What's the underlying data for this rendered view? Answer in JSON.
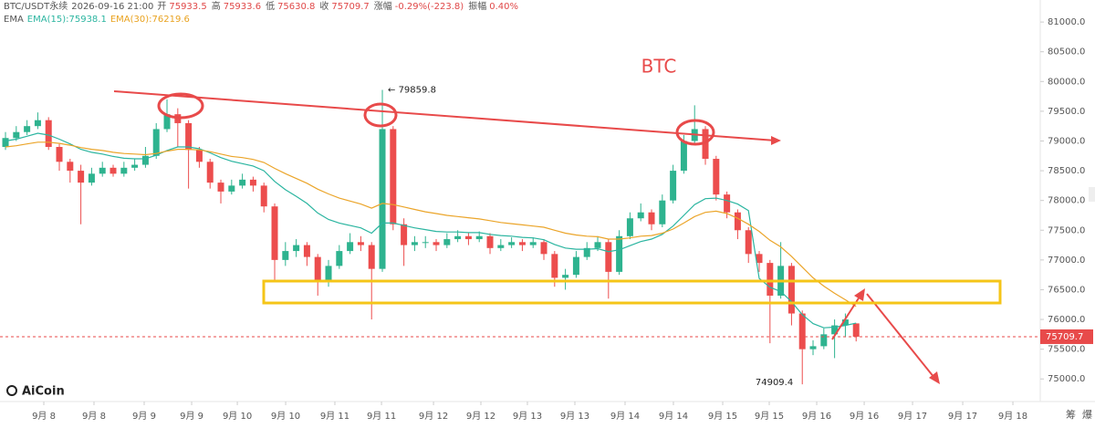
{
  "chart_data": {
    "type": "candlestick",
    "title": "BTC",
    "header": {
      "symbol": "BTC/USDT永续",
      "time": "2026-09-16 21:00",
      "fields": [
        {
          "name": "开",
          "value": "75933.5"
        },
        {
          "name": "高",
          "value": "75933.6"
        },
        {
          "name": "低",
          "value": "75630.8"
        },
        {
          "name": "收",
          "value": "75709.7"
        },
        {
          "name": "涨幅",
          "value": "-0.29%(-223.8)"
        },
        {
          "name": "振幅",
          "value": "0.40%"
        }
      ]
    },
    "indicator": "EMA",
    "watermark": "AiCoin",
    "corner_buttons": [
      "筹",
      "爆"
    ],
    "up_color": "#2eb38f",
    "down_color": "#ec4d4d",
    "open": [
      78900,
      79050,
      79150,
      79250,
      79350,
      78900,
      78650,
      78500,
      78300,
      78450,
      78550,
      78450,
      78550,
      78600,
      78750,
      79200,
      79450,
      79300,
      78850,
      78650,
      78300,
      78150,
      78250,
      78350,
      78250,
      77900,
      77000,
      77150,
      77250,
      77050,
      76650,
      76900,
      77150,
      77300,
      77250,
      76850,
      79200,
      77600,
      77250,
      77300,
      77300,
      77250,
      77350,
      77400,
      77350,
      77400,
      77200,
      77250,
      77300,
      77250,
      77300,
      77100,
      76700,
      76750,
      77050,
      77200,
      77300,
      76800,
      77400,
      77700,
      77800,
      77600,
      78000,
      78500,
      79000,
      79200,
      78700,
      78100,
      77800,
      77500,
      77100,
      76950,
      76400,
      76900,
      76100,
      75500,
      75550,
      75750,
      75900,
      75933.5
    ],
    "high": [
      79150,
      79250,
      79350,
      79480,
      79400,
      78950,
      78700,
      78600,
      78550,
      78650,
      78600,
      78650,
      78700,
      78900,
      79300,
      79700,
      79550,
      79350,
      78900,
      78700,
      78350,
      78350,
      78450,
      78400,
      78300,
      77950,
      77300,
      77350,
      77300,
      77100,
      77000,
      77250,
      77450,
      77400,
      77300,
      79859.8,
      79250,
      77700,
      77400,
      77400,
      77350,
      77450,
      77500,
      77450,
      77480,
      77450,
      77350,
      77380,
      77350,
      77380,
      77350,
      77150,
      76850,
      77150,
      77300,
      77400,
      77350,
      77500,
      77800,
      77950,
      77850,
      78100,
      78600,
      79100,
      79600,
      79250,
      78750,
      78150,
      77850,
      77550,
      77150,
      77000,
      77300,
      76950,
      76150,
      75650,
      75850,
      76000,
      76100,
      75933.6
    ],
    "low": [
      78850,
      79000,
      79100,
      79200,
      78850,
      78500,
      78300,
      77600,
      78250,
      78400,
      78400,
      78400,
      78500,
      78550,
      78700,
      79150,
      78900,
      78200,
      78550,
      78200,
      77950,
      78100,
      78200,
      78150,
      77800,
      76650,
      76900,
      77050,
      76900,
      76400,
      76550,
      76850,
      77100,
      77150,
      76000,
      76800,
      77500,
      76900,
      77150,
      77200,
      77150,
      77200,
      77300,
      77250,
      77300,
      77100,
      77150,
      77200,
      77150,
      77200,
      77000,
      76550,
      76500,
      76700,
      77000,
      77150,
      76350,
      76750,
      77350,
      77650,
      77500,
      77550,
      77950,
      78450,
      78950,
      78600,
      78000,
      77700,
      77350,
      76950,
      76800,
      75600,
      76350,
      75900,
      74909.4,
      75400,
      75500,
      75350,
      75700,
      75630.8
    ],
    "close": [
      79050,
      79150,
      79250,
      79350,
      78900,
      78650,
      78500,
      78300,
      78450,
      78550,
      78450,
      78550,
      78600,
      78750,
      79200,
      79450,
      79300,
      78850,
      78650,
      78300,
      78150,
      78250,
      78350,
      78250,
      77900,
      77000,
      77150,
      77250,
      77050,
      76650,
      76900,
      77150,
      77300,
      77250,
      76850,
      79200,
      77600,
      77250,
      77300,
      77300,
      77250,
      77350,
      77400,
      77350,
      77400,
      77200,
      77250,
      77300,
      77250,
      77300,
      77100,
      76700,
      76750,
      77050,
      77200,
      77300,
      76800,
      77400,
      77700,
      77800,
      77600,
      78000,
      78500,
      79000,
      79200,
      78700,
      78100,
      77800,
      77500,
      77100,
      76950,
      76400,
      76900,
      76100,
      75500,
      75550,
      75750,
      75900,
      76000,
      75709.7
    ],
    "series": [
      {
        "name": "EMA(15):75938.1",
        "color": "#2bb5a0",
        "values": [
          79000,
          79030,
          79080,
          79130,
          79100,
          79030,
          78950,
          78860,
          78810,
          78780,
          78740,
          78710,
          78700,
          78700,
          78760,
          78840,
          78900,
          78900,
          78870,
          78800,
          78720,
          78660,
          78620,
          78580,
          78500,
          78320,
          78180,
          78070,
          77950,
          77790,
          77680,
          77620,
          77580,
          77540,
          77450,
          77620,
          77620,
          77580,
          77540,
          77510,
          77480,
          77470,
          77470,
          77460,
          77460,
          77430,
          77410,
          77400,
          77380,
          77370,
          77340,
          77260,
          77200,
          77180,
          77180,
          77190,
          77140,
          77170,
          77240,
          77310,
          77350,
          77430,
          77570,
          77750,
          77930,
          78030,
          78040,
          78000,
          77940,
          77830,
          76690,
          76540,
          76470,
          76300,
          76080,
          75930,
          75860,
          75870,
          75900,
          75938.1
        ]
      },
      {
        "name": "EMA(30):76219.6",
        "color": "#eba52a",
        "values": [
          78900,
          78920,
          78950,
          78980,
          78980,
          78960,
          78930,
          78890,
          78860,
          78840,
          78810,
          78790,
          78780,
          78770,
          78790,
          78830,
          78860,
          78860,
          78850,
          78820,
          78780,
          78740,
          78720,
          78690,
          78640,
          78540,
          78450,
          78370,
          78290,
          78190,
          78110,
          78040,
          77990,
          77940,
          77870,
          77950,
          77930,
          77890,
          77850,
          77810,
          77780,
          77750,
          77730,
          77710,
          77690,
          77660,
          77630,
          77610,
          77590,
          77570,
          77550,
          77500,
          77450,
          77420,
          77400,
          77390,
          77350,
          77350,
          77370,
          77400,
          77410,
          77450,
          77520,
          77620,
          77730,
          77800,
          77820,
          77780,
          77700,
          77600,
          77480,
          77330,
          77220,
          77060,
          76880,
          76700,
          76560,
          76440,
          76330,
          76219.6
        ]
      }
    ],
    "annotations": [
      {
        "index": 35,
        "value": 79859.8,
        "label": "← 79859.8"
      },
      {
        "index": 74,
        "value": 74909.4,
        "label": "74909.4"
      }
    ],
    "xlim": [
      -0.51,
      96.1
    ],
    "xticks": [
      {
        "value": 3.56,
        "label": "9月 8"
      },
      {
        "value": 8.22,
        "label": "9月 8"
      },
      {
        "value": 12.88,
        "label": "9月 9"
      },
      {
        "value": 17.29,
        "label": "9月 9"
      },
      {
        "value": 21.53,
        "label": "9月 10"
      },
      {
        "value": 26.02,
        "label": "9月 10"
      },
      {
        "value": 30.59,
        "label": "9月 11"
      },
      {
        "value": 34.92,
        "label": "9月 11"
      },
      {
        "value": 39.75,
        "label": "9月 12"
      },
      {
        "value": 44.15,
        "label": "9月 12"
      },
      {
        "value": 48.47,
        "label": "9月 13"
      },
      {
        "value": 52.88,
        "label": "9月 13"
      },
      {
        "value": 57.54,
        "label": "9月 14"
      },
      {
        "value": 62.03,
        "label": "9月 14"
      },
      {
        "value": 66.61,
        "label": "9月 15"
      },
      {
        "value": 70.93,
        "label": "9月 15"
      },
      {
        "value": 75.34,
        "label": "9月 16"
      },
      {
        "value": 79.75,
        "label": "9月 16"
      },
      {
        "value": 84.24,
        "label": "9月 17"
      },
      {
        "value": 88.9,
        "label": "9月 17"
      },
      {
        "value": 93.56,
        "label": "9月 18"
      }
    ],
    "ylim": [
      74620,
      81370
    ],
    "yticks": [
      {
        "value": 75000,
        "label": "75000.0"
      },
      {
        "value": 75500,
        "label": "75500.0"
      },
      {
        "value": 76000,
        "label": "76000.0"
      },
      {
        "value": 76500,
        "label": "76500.0"
      },
      {
        "value": 77000,
        "label": "77000.0"
      },
      {
        "value": 77500,
        "label": "77500.0"
      },
      {
        "value": 78000,
        "label": "78000.0"
      },
      {
        "value": 78500,
        "label": "78500.0"
      },
      {
        "value": 79000,
        "label": "79000.0"
      },
      {
        "value": 79500,
        "label": "79500.0"
      },
      {
        "value": 80000,
        "label": "80000.0"
      },
      {
        "value": 80500,
        "label": "80500.0"
      },
      {
        "value": 81000,
        "label": "81000.0"
      }
    ],
    "grid": false
  }
}
